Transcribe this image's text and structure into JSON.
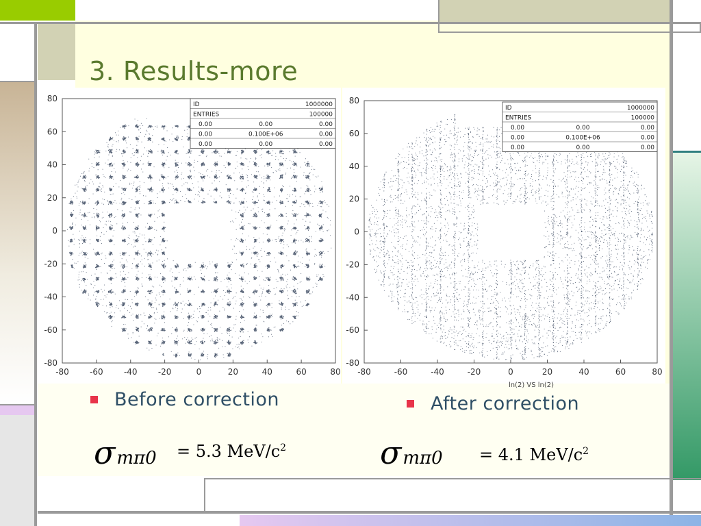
{
  "slide": {
    "title": "3. Results-more",
    "colors": {
      "green_accent": "#99cc00",
      "tan": "#d2d2b4",
      "brown": "#c8b496",
      "pale_yellow": "#ffffe0",
      "dark_green": "#339966",
      "lavender": "#e6c8f0",
      "gray_line": "#9a9a9a",
      "teal_line": "#2f7f7f"
    }
  },
  "left_plot": {
    "name": "before",
    "stats": [
      [
        "ID",
        "",
        "1000000"
      ],
      [
        "ENTRIES",
        "",
        "100000"
      ],
      [
        "0.00",
        "0.00",
        "0.00"
      ],
      [
        "0.00",
        "0.100E+06",
        "0.00"
      ],
      [
        "0.00",
        "0.00",
        "0.00"
      ]
    ],
    "x_ticks": [
      "-80",
      "-60",
      "-40",
      "-20",
      "0",
      "20",
      "40",
      "60",
      "80"
    ],
    "y_ticks": [
      "80",
      "60",
      "40",
      "20",
      "0",
      "-20",
      "-40",
      "-60",
      "-80"
    ]
  },
  "right_plot": {
    "name": "after",
    "stats": [
      [
        "ID",
        "",
        "1000000"
      ],
      [
        "ENTRIES",
        "",
        "100000"
      ],
      [
        "0.00",
        "0.00",
        "0.00"
      ],
      [
        "0.00",
        "0.100E+06",
        "0.00"
      ],
      [
        "0.00",
        "0.00",
        "0.00"
      ]
    ],
    "x_ticks": [
      "-80",
      "-60",
      "-40",
      "-20",
      "0",
      "20",
      "40",
      "60",
      "80"
    ],
    "y_ticks": [
      "80",
      "60",
      "40",
      "20",
      "0",
      "-20",
      "-40",
      "-60",
      "-80"
    ],
    "x_title": "ln(2) VS ln(2)"
  },
  "bullets": {
    "before": "Before correction",
    "after": "After correction"
  },
  "formulas": {
    "sigma": "σ",
    "subscript": "mπ0",
    "before_value": "= 5.3 MeV/c",
    "after_value": "= 4.1 MeV/c",
    "exponent": "2"
  }
}
